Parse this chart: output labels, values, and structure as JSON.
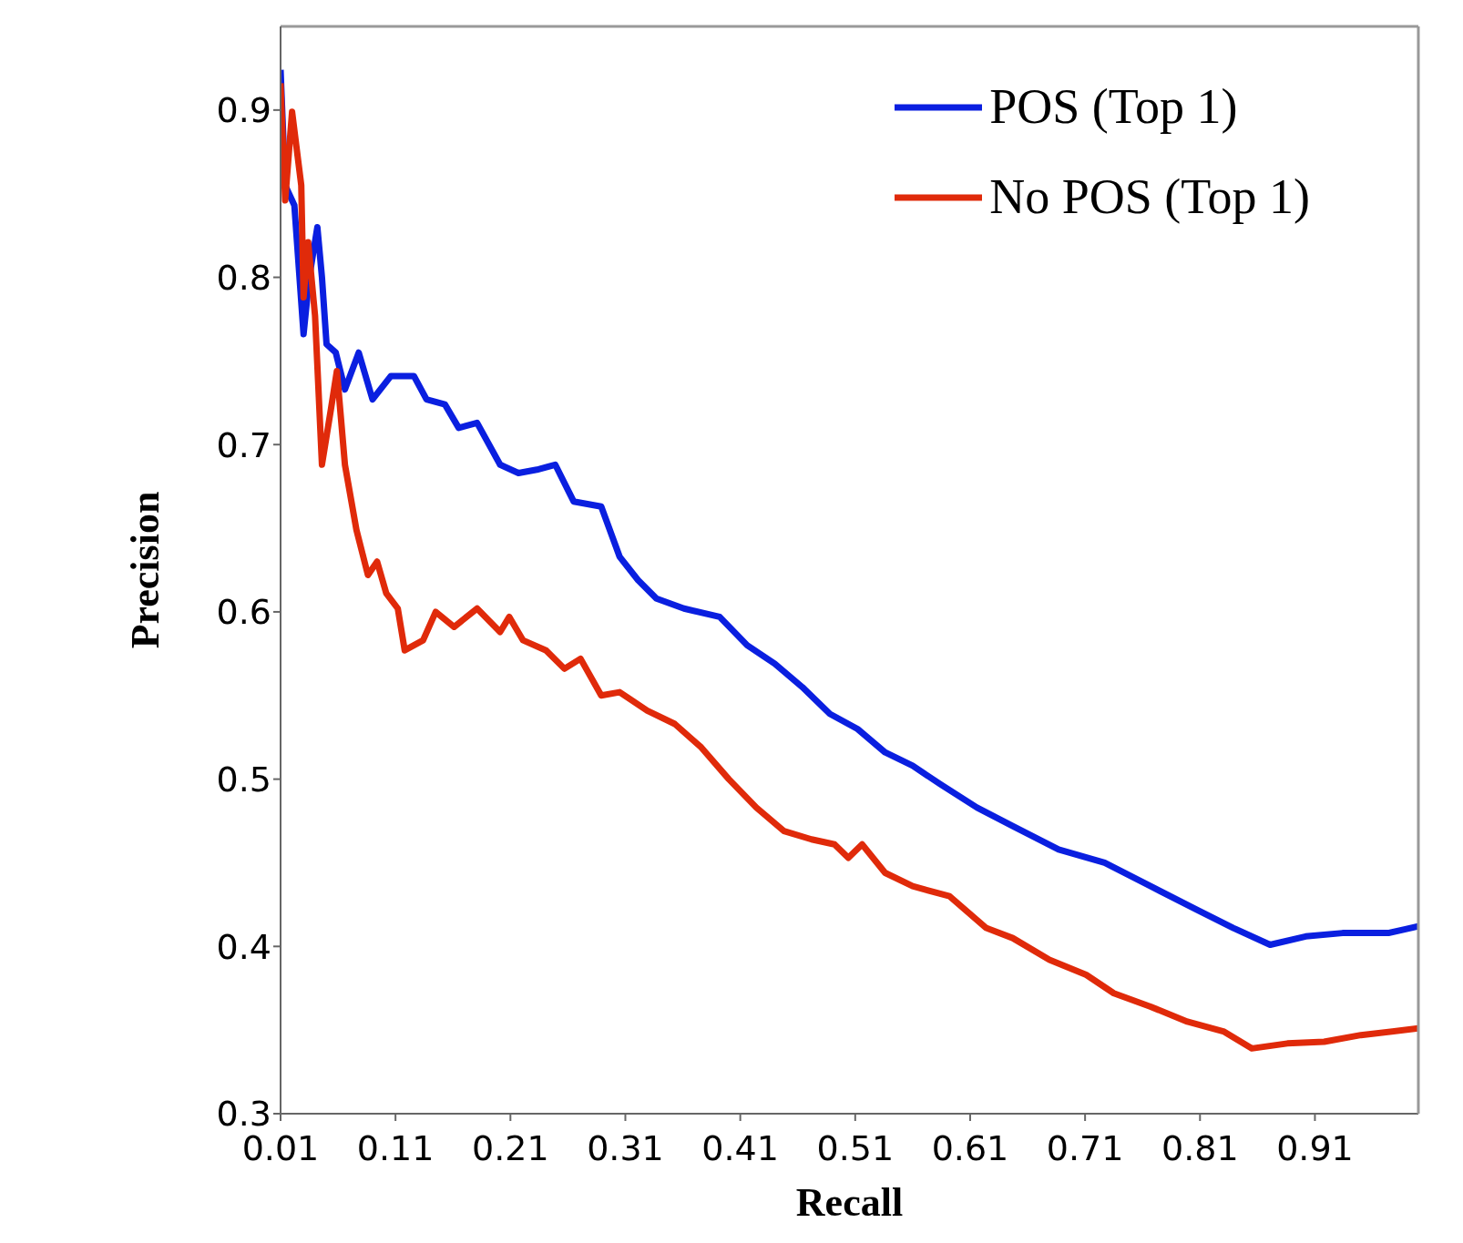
{
  "chart_data": {
    "type": "line",
    "xlabel": "Recall",
    "ylabel": "Precision",
    "xlim": [
      0.01,
      1.0
    ],
    "ylim": [
      0.3,
      0.95
    ],
    "xticks": [
      0.01,
      0.11,
      0.21,
      0.31,
      0.41,
      0.51,
      0.61,
      0.71,
      0.81,
      0.91
    ],
    "yticks": [
      0.3,
      0.4,
      0.5,
      0.6,
      0.7,
      0.8,
      0.9
    ],
    "grid": false,
    "legend": "top right",
    "marker": "none",
    "line_style": "solid",
    "series": [
      {
        "name": "POS (Top 1)",
        "color": "#0a1fe0",
        "x": [
          0.01,
          0.014,
          0.022,
          0.03,
          0.035,
          0.042,
          0.046,
          0.05,
          0.058,
          0.066,
          0.078,
          0.09,
          0.106,
          0.126,
          0.137,
          0.153,
          0.165,
          0.181,
          0.201,
          0.217,
          0.233,
          0.249,
          0.265,
          0.289,
          0.305,
          0.321,
          0.337,
          0.361,
          0.392,
          0.416,
          0.44,
          0.464,
          0.488,
          0.512,
          0.536,
          0.56,
          0.584,
          0.616,
          0.647,
          0.687,
          0.727,
          0.767,
          0.807,
          0.839,
          0.871,
          0.902,
          0.934,
          0.974,
          1.0
        ],
        "values": [
          0.924,
          0.855,
          0.843,
          0.766,
          0.8,
          0.83,
          0.8,
          0.76,
          0.755,
          0.733,
          0.755,
          0.727,
          0.741,
          0.741,
          0.727,
          0.724,
          0.71,
          0.713,
          0.688,
          0.683,
          0.685,
          0.688,
          0.666,
          0.663,
          0.633,
          0.619,
          0.608,
          0.602,
          0.597,
          0.58,
          0.569,
          0.555,
          0.539,
          0.53,
          0.516,
          0.508,
          0.497,
          0.483,
          0.472,
          0.458,
          0.45,
          0.436,
          0.422,
          0.411,
          0.401,
          0.406,
          0.408,
          0.408,
          0.412
        ]
      },
      {
        "name": "No POS (Top 1)",
        "color": "#e02a0a",
        "x": [
          0.01,
          0.014,
          0.02,
          0.024,
          0.028,
          0.03,
          0.034,
          0.04,
          0.046,
          0.054,
          0.059,
          0.066,
          0.076,
          0.086,
          0.094,
          0.102,
          0.112,
          0.118,
          0.134,
          0.145,
          0.161,
          0.181,
          0.201,
          0.209,
          0.221,
          0.241,
          0.257,
          0.271,
          0.289,
          0.305,
          0.329,
          0.353,
          0.376,
          0.4,
          0.424,
          0.448,
          0.472,
          0.492,
          0.504,
          0.516,
          0.536,
          0.56,
          0.592,
          0.624,
          0.647,
          0.679,
          0.711,
          0.735,
          0.767,
          0.799,
          0.831,
          0.855,
          0.886,
          0.918,
          0.95,
          1.0
        ],
        "values": [
          0.916,
          0.846,
          0.899,
          0.877,
          0.855,
          0.788,
          0.821,
          0.777,
          0.688,
          0.722,
          0.744,
          0.688,
          0.649,
          0.622,
          0.63,
          0.611,
          0.602,
          0.577,
          0.583,
          0.6,
          0.591,
          0.602,
          0.588,
          0.597,
          0.583,
          0.577,
          0.566,
          0.572,
          0.55,
          0.552,
          0.541,
          0.533,
          0.519,
          0.5,
          0.483,
          0.469,
          0.464,
          0.461,
          0.453,
          0.461,
          0.444,
          0.436,
          0.43,
          0.411,
          0.405,
          0.392,
          0.383,
          0.372,
          0.364,
          0.355,
          0.349,
          0.339,
          0.342,
          0.343,
          0.347,
          0.351
        ]
      }
    ]
  }
}
